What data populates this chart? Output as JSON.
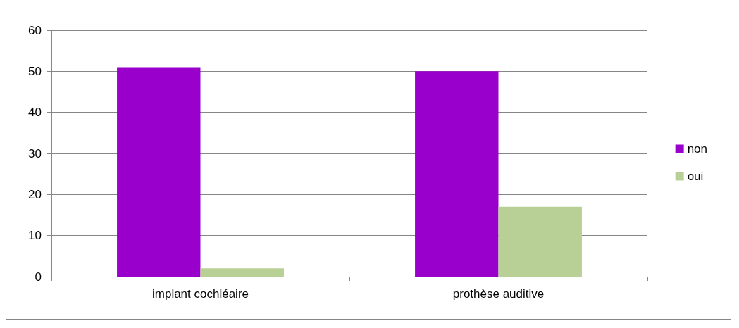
{
  "chart_data": {
    "type": "bar",
    "categories": [
      "implant cochléaire",
      "prothèse auditive"
    ],
    "series": [
      {
        "name": "non",
        "color": "#9900cc",
        "values": [
          51,
          50
        ]
      },
      {
        "name": "oui",
        "color": "#b8cf96",
        "values": [
          2,
          17
        ]
      }
    ],
    "ylim": [
      0,
      60
    ],
    "yticks": [
      0,
      10,
      20,
      30,
      40,
      50,
      60
    ],
    "grid": "y",
    "legend": "right"
  }
}
